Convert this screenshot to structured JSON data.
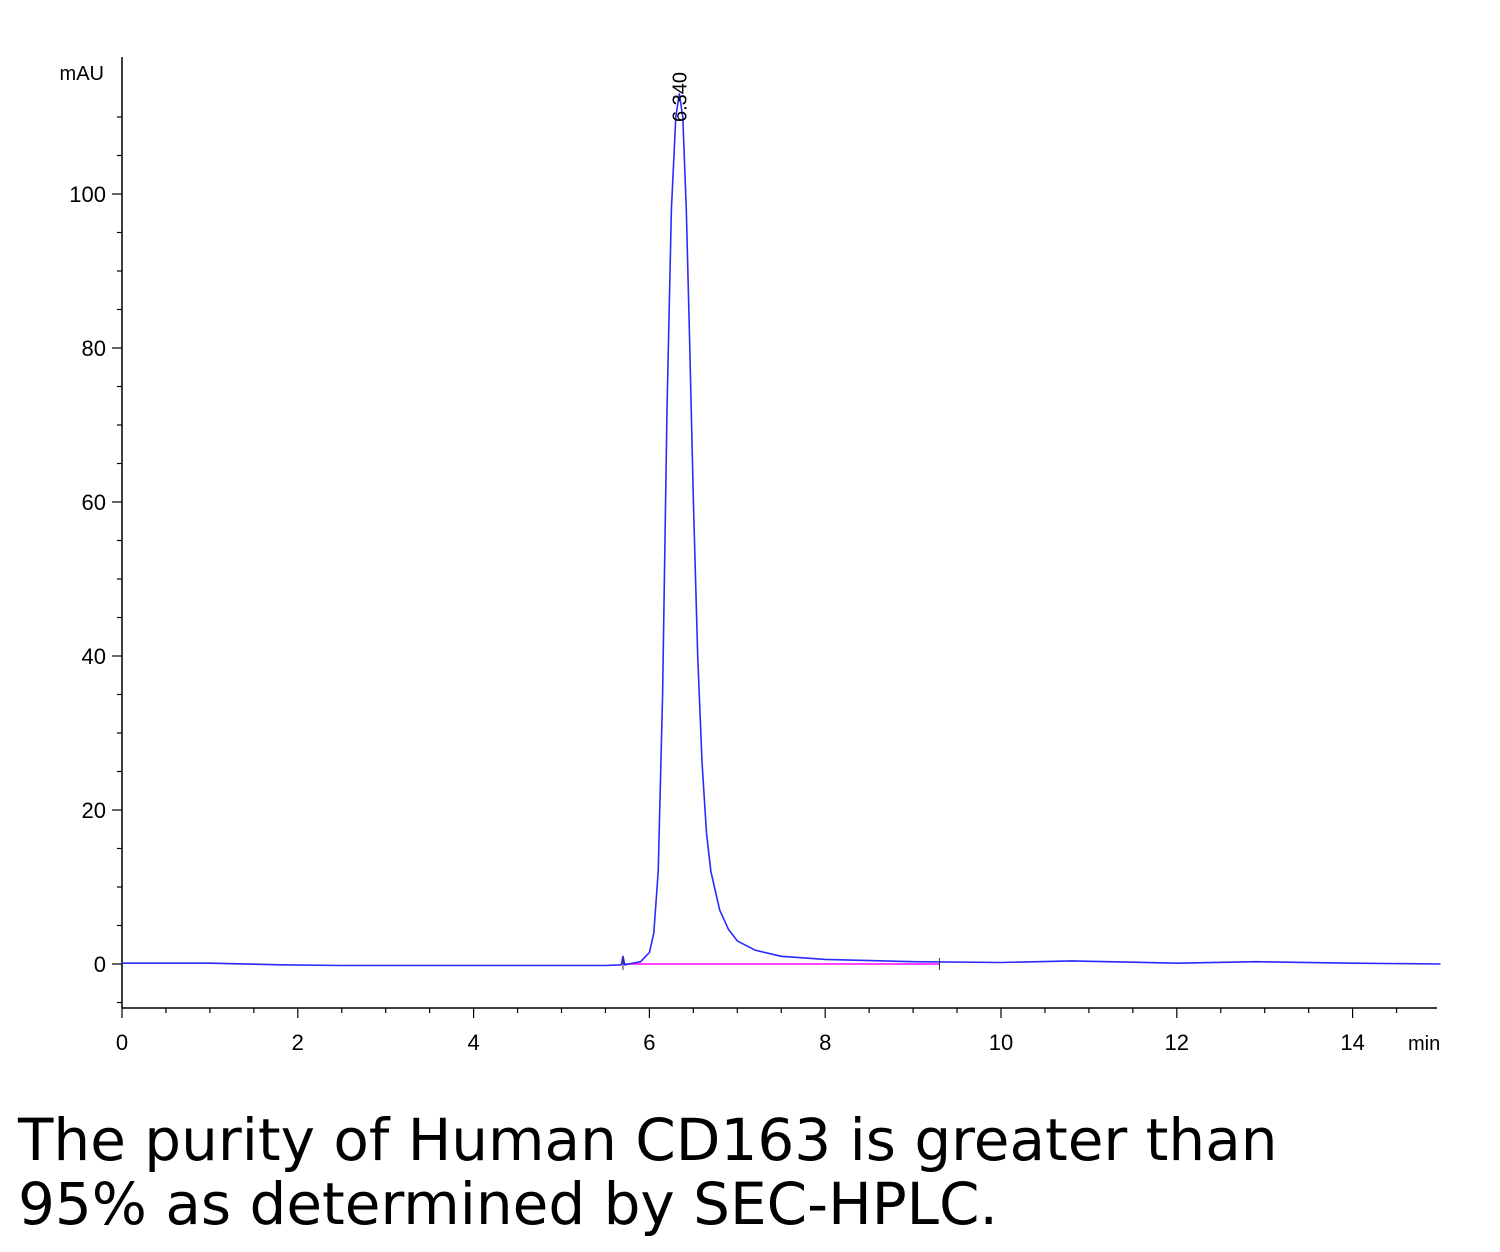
{
  "chart_data": {
    "type": "line",
    "xlabel": "min",
    "ylabel": "mAU",
    "xlim": [
      0,
      15
    ],
    "ylim": [
      -6,
      117
    ],
    "x_ticks": [
      0,
      2,
      4,
      6,
      8,
      10,
      12,
      14
    ],
    "y_ticks": [
      0,
      20,
      40,
      60,
      80,
      100
    ],
    "grid": false,
    "legend": "none",
    "series": [
      {
        "color": "#2a2aff",
        "x": [
          0,
          1.0,
          1.8,
          2.5,
          4.0,
          5.5,
          5.68,
          5.7,
          5.72,
          5.9,
          6.0,
          6.05,
          6.1,
          6.15,
          6.2,
          6.25,
          6.3,
          6.34,
          6.38,
          6.42,
          6.46,
          6.5,
          6.55,
          6.6,
          6.65,
          6.7,
          6.8,
          6.9,
          7.0,
          7.2,
          7.5,
          8.0,
          9.0,
          10.0,
          10.8,
          12.0,
          12.9,
          14.0,
          15.0
        ],
        "y": [
          0.1,
          0.1,
          -0.1,
          -0.2,
          -0.2,
          -0.2,
          -0.1,
          1.0,
          -0.1,
          0.3,
          1.5,
          4.0,
          12.0,
          35.0,
          72.0,
          98.0,
          110.0,
          113.0,
          110.0,
          98.0,
          80.0,
          60.0,
          40.0,
          26.0,
          17.0,
          12.0,
          7.0,
          4.5,
          3.0,
          1.8,
          1.0,
          0.6,
          0.3,
          0.2,
          0.4,
          0.1,
          0.3,
          0.1,
          0.0
        ]
      },
      {
        "color": "#ff00ff",
        "x": [
          5.7,
          9.3
        ],
        "y": [
          0,
          0
        ]
      }
    ],
    "annotations": [
      {
        "text": "6.340",
        "x": 6.34
      }
    ]
  },
  "caption": {
    "line1": "The purity of Human CD163 is greater than",
    "line2": "95% as determined by SEC-HPLC."
  }
}
